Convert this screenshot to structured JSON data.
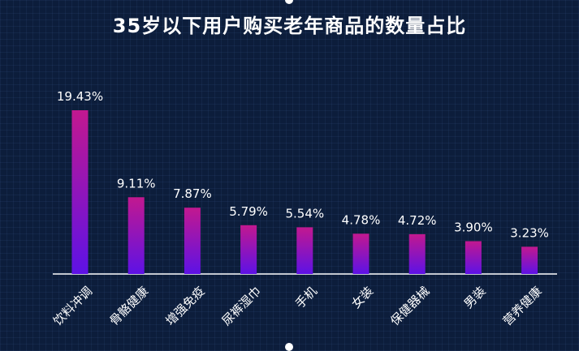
{
  "chart_data": {
    "type": "bar",
    "title": "35岁以下用户购买老年商品的数量占比",
    "categories": [
      "饮料冲调",
      "骨骼健康",
      "增强免疫",
      "尿裤湿巾",
      "手机",
      "女装",
      "保健器械",
      "男装",
      "营养健康"
    ],
    "values": [
      19.43,
      9.11,
      7.87,
      5.79,
      5.54,
      4.78,
      4.72,
      3.9,
      3.23
    ],
    "value_labels": [
      "19.43%",
      "9.11%",
      "7.87%",
      "5.79%",
      "5.54%",
      "4.78%",
      "4.72%",
      "3.90%",
      "3.23%"
    ],
    "unit": "%",
    "xlabel": "",
    "ylabel": "",
    "ylim": [
      0,
      20
    ],
    "grid": false,
    "colors": {
      "bar_top": "#c2188f",
      "bar_bottom": "#5d12e6",
      "axis": "#ffffff",
      "text": "#ffffff"
    }
  }
}
